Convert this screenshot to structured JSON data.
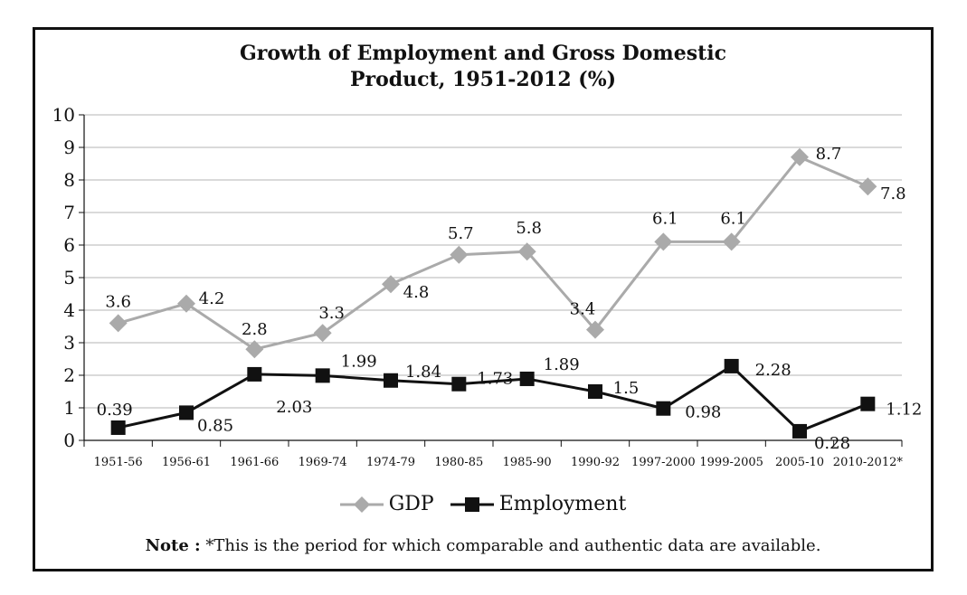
{
  "chart_data": {
    "type": "line",
    "title_lines": [
      "Growth of Employment and Gross Domestic",
      "Product, 1951-2012 (%)"
    ],
    "categories": [
      "1951-56",
      "1956-61",
      "1961-66",
      "1969-74",
      "1974-79",
      "1980-85",
      "1985-90",
      "1990-92",
      "1997-2000",
      "1999-2005",
      "2005-10",
      "2010-2012*"
    ],
    "series": [
      {
        "name": "GDP",
        "values": [
          3.6,
          4.2,
          2.8,
          3.3,
          4.8,
          5.7,
          5.8,
          3.4,
          6.1,
          6.1,
          8.7,
          7.8
        ],
        "labels": [
          "3.6",
          "4.2",
          "2.8",
          "3.3",
          "4.8",
          "5.7",
          "5.8",
          "3.4",
          "6.1",
          "6.1",
          "8.7",
          "7.8"
        ],
        "color": "#aaaaaa",
        "marker": "diamond"
      },
      {
        "name": "Employment",
        "values": [
          0.39,
          0.85,
          2.03,
          1.99,
          1.84,
          1.73,
          1.89,
          1.5,
          0.98,
          2.28,
          0.28,
          1.12
        ],
        "labels": [
          "0.39",
          "0.85",
          "2.03",
          "1.99",
          "1.84",
          "1.73",
          "1.89",
          "1.5",
          "0.98",
          "2.28",
          "0.28",
          "1.12"
        ],
        "color": "#111111",
        "marker": "square"
      }
    ],
    "yticks": [
      "0",
      "1",
      "2",
      "3",
      "4",
      "5",
      "6",
      "7",
      "8",
      "9",
      "10"
    ],
    "ylim": [
      0,
      10
    ],
    "grid": true,
    "legend_position": "bottom"
  },
  "note": {
    "label": "Note :",
    "text": " *This is the period for which comparable and authentic data are available."
  }
}
